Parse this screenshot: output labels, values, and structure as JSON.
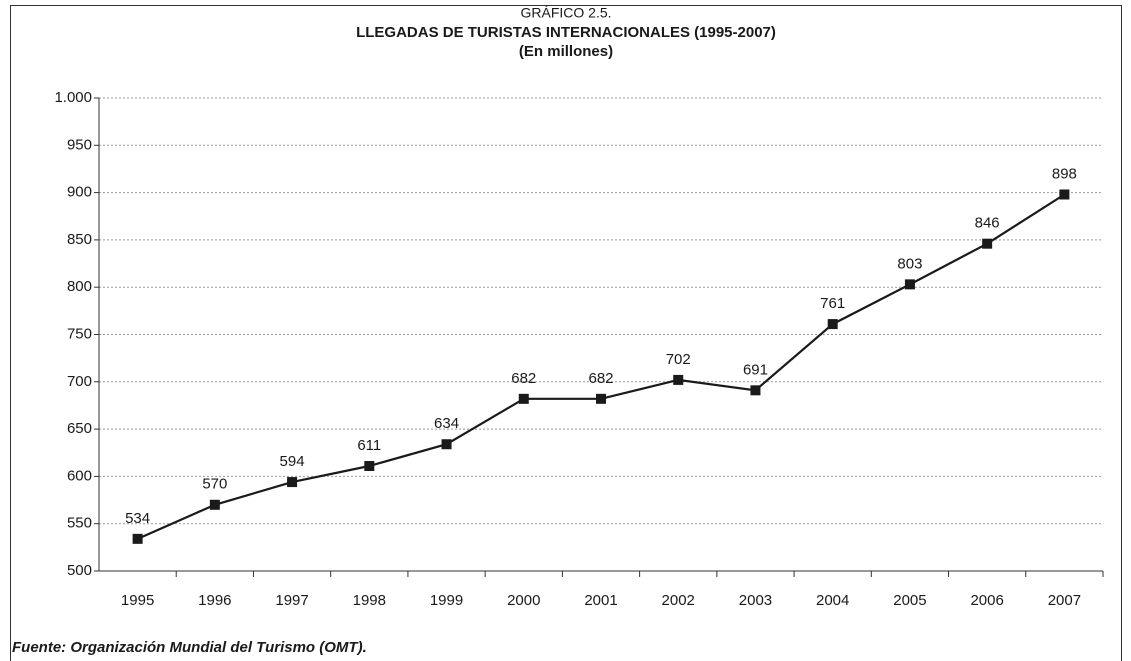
{
  "chart_data": {
    "type": "line",
    "supertitle": "GRÁFICO 2.5.",
    "title": "LLEGADAS DE TURISTAS INTERNACIONALES (1995-2007)",
    "subtitle": "(En millones)",
    "source": "Fuente: Organización Mundial del Turismo (OMT).",
    "categories": [
      "1995",
      "1996",
      "1997",
      "1998",
      "1999",
      "2000",
      "2001",
      "2002",
      "2003",
      "2004",
      "2005",
      "2006",
      "2007"
    ],
    "values": [
      534,
      570,
      594,
      611,
      634,
      682,
      682,
      702,
      691,
      761,
      803,
      846,
      898
    ],
    "color": "#1a1a1a",
    "ylim": [
      500,
      1000
    ],
    "yticks": [
      500,
      550,
      600,
      650,
      700,
      750,
      800,
      850,
      900,
      950,
      {
        "value": 1000,
        "label": "1.000"
      }
    ],
    "grid": true
  }
}
